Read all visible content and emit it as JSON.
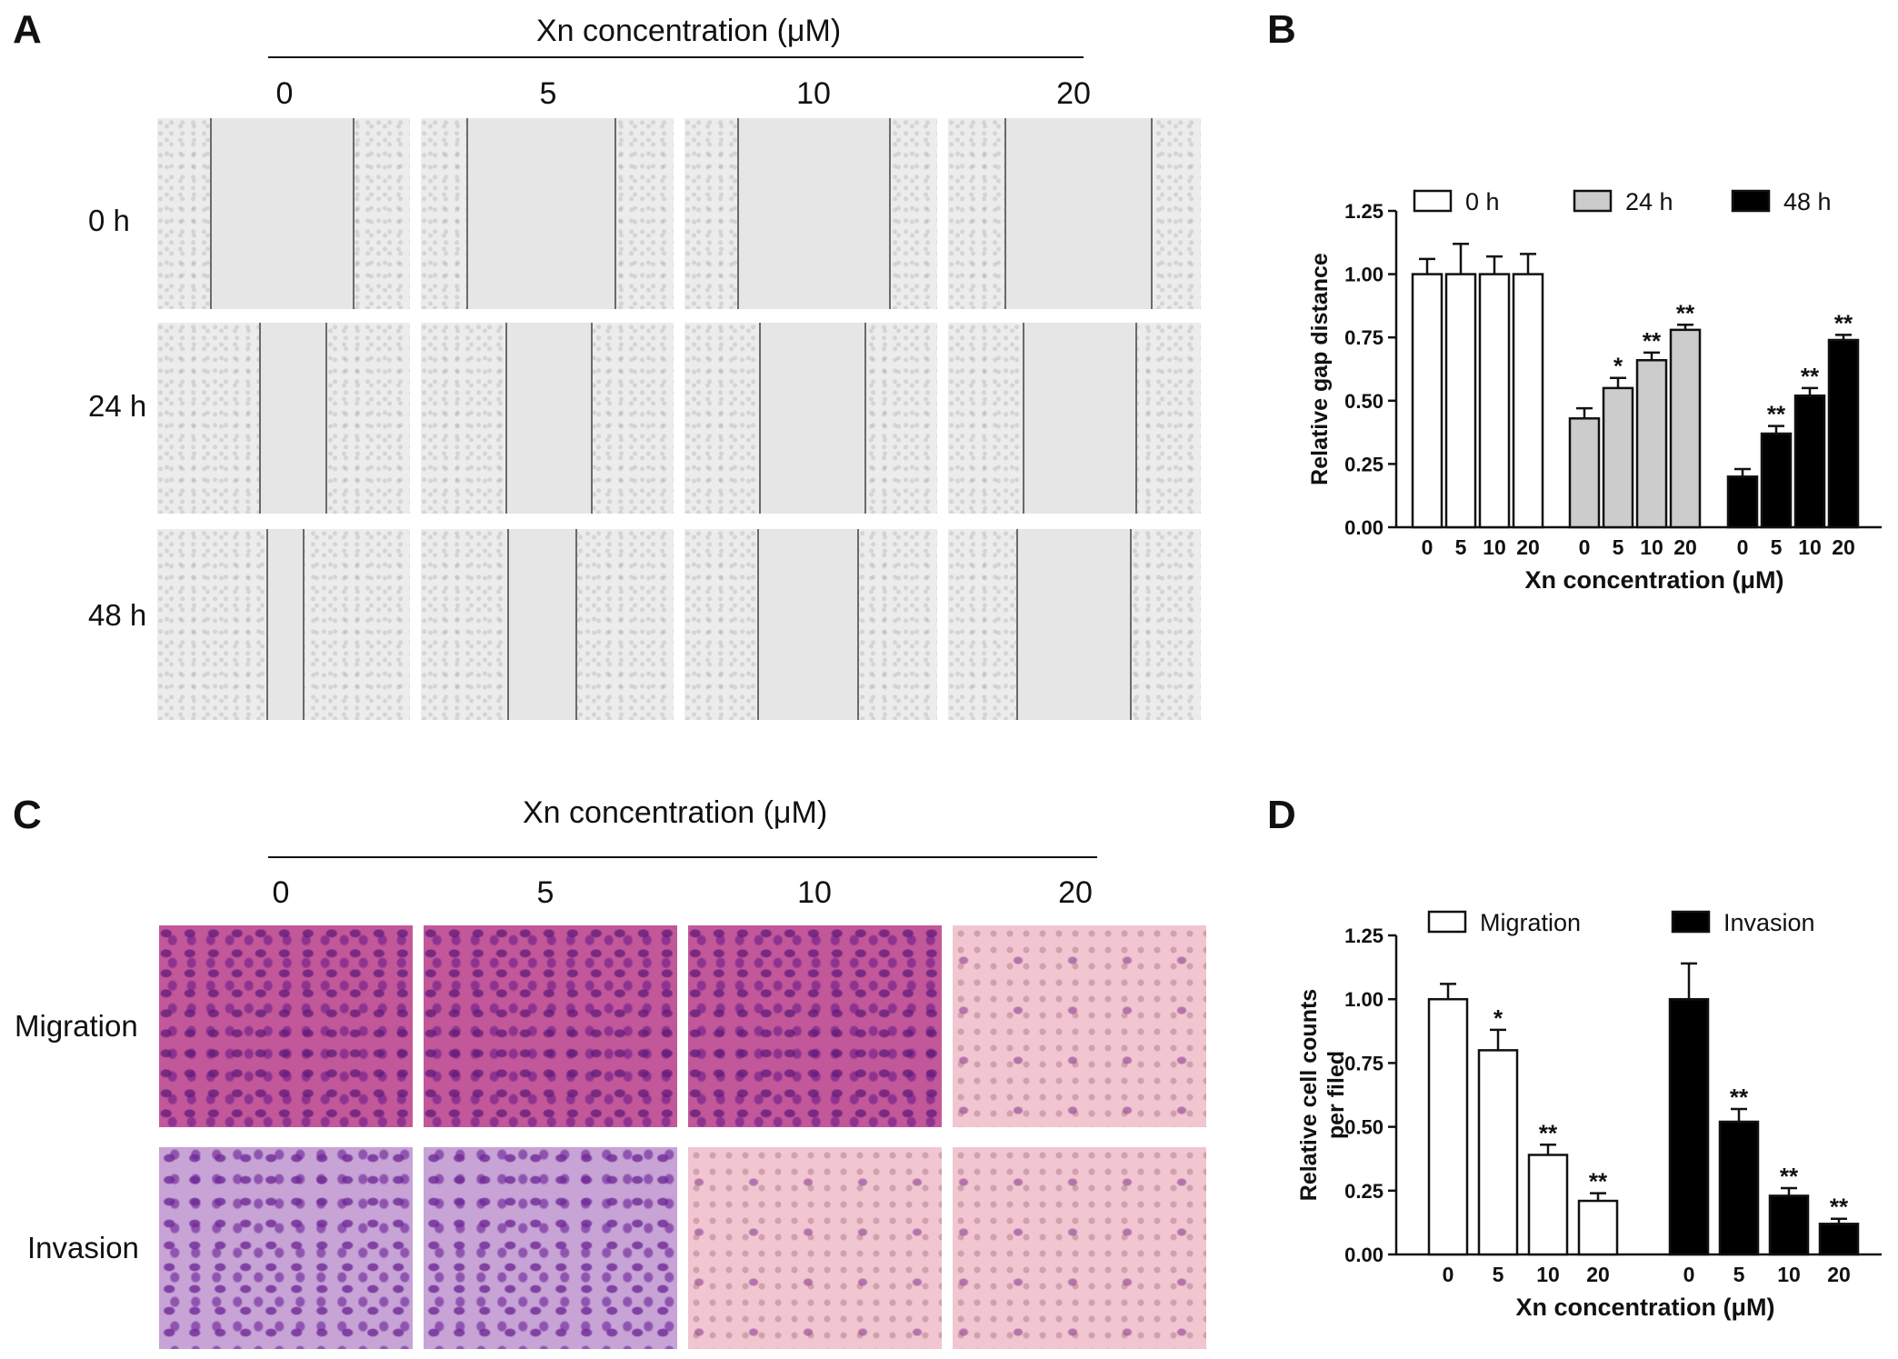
{
  "panels": {
    "A": {
      "letter": "A",
      "title": "Xn concentration (μM)",
      "concentrations": [
        "0",
        "5",
        "10",
        "20"
      ],
      "rows": [
        "0 h",
        "24 h",
        "48 h"
      ]
    },
    "B": {
      "letter": "B"
    },
    "C": {
      "letter": "C",
      "title": "Xn concentration (μM)",
      "concentrations": [
        "0",
        "5",
        "10",
        "20"
      ],
      "rows": [
        "Migration",
        "Invasion"
      ]
    },
    "D": {
      "letter": "D"
    }
  },
  "chart_data": [
    {
      "id": "B",
      "type": "bar",
      "ylabel": "Relative gap distance",
      "xlabel": "Xn concentration (μM)",
      "ylim": [
        0,
        1.25
      ],
      "yticks": [
        "0.00",
        "0.25",
        "0.50",
        "0.75",
        "1.00",
        "1.25"
      ],
      "legend_position": "top",
      "groups": [
        {
          "name": "0 h",
          "color": "#ffffff",
          "categories": [
            "0",
            "5",
            "10",
            "20"
          ],
          "values": [
            1.0,
            1.0,
            1.0,
            1.0
          ],
          "errors": [
            0.06,
            0.12,
            0.07,
            0.08
          ],
          "significance": [
            "",
            "",
            "",
            ""
          ]
        },
        {
          "name": "24 h",
          "color": "#cccccc",
          "categories": [
            "0",
            "5",
            "10",
            "20"
          ],
          "values": [
            0.43,
            0.55,
            0.66,
            0.78
          ],
          "errors": [
            0.04,
            0.04,
            0.03,
            0.02
          ],
          "significance": [
            "",
            "*",
            "**",
            "**"
          ]
        },
        {
          "name": "48 h",
          "color": "#000000",
          "categories": [
            "0",
            "5",
            "10",
            "20"
          ],
          "values": [
            0.2,
            0.37,
            0.52,
            0.74
          ],
          "errors": [
            0.03,
            0.03,
            0.03,
            0.02
          ],
          "significance": [
            "",
            "**",
            "**",
            "**"
          ]
        }
      ]
    },
    {
      "id": "D",
      "type": "bar",
      "ylabel": "Relative cell counts per filed",
      "xlabel": "Xn concentration (μM)",
      "ylim": [
        0,
        1.25
      ],
      "yticks": [
        "0.00",
        "0.25",
        "0.50",
        "0.75",
        "1.00",
        "1.25"
      ],
      "legend_position": "top",
      "groups": [
        {
          "name": "Migration",
          "color": "#ffffff",
          "categories": [
            "0",
            "5",
            "10",
            "20"
          ],
          "values": [
            1.0,
            0.8,
            0.39,
            0.21
          ],
          "errors": [
            0.06,
            0.08,
            0.04,
            0.03
          ],
          "significance": [
            "",
            "*",
            "**",
            "**"
          ]
        },
        {
          "name": "Invasion",
          "color": "#000000",
          "categories": [
            "0",
            "5",
            "10",
            "20"
          ],
          "values": [
            1.0,
            0.52,
            0.23,
            0.12
          ],
          "errors": [
            0.14,
            0.05,
            0.03,
            0.02
          ],
          "significance": [
            "",
            "**",
            "**",
            "**"
          ]
        }
      ]
    }
  ]
}
